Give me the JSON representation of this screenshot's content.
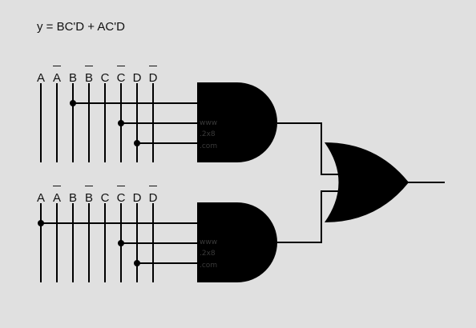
{
  "equation": "y = BC'D + AC'D",
  "upper_block": {
    "labels": [
      "A",
      "A",
      "B",
      "B",
      "C",
      "C",
      "D",
      "D"
    ],
    "overbars": [
      false,
      true,
      false,
      true,
      false,
      true,
      false,
      true
    ]
  },
  "lower_block": {
    "labels": [
      "A",
      "A",
      "B",
      "B",
      "C",
      "C",
      "D",
      "D"
    ],
    "overbars": [
      false,
      true,
      false,
      true,
      false,
      true,
      false,
      true
    ]
  },
  "watermark": [
    "www",
    ".2x8",
    ".com"
  ],
  "colors": {
    "background": "#e0e0e0",
    "ink": "#000000"
  }
}
